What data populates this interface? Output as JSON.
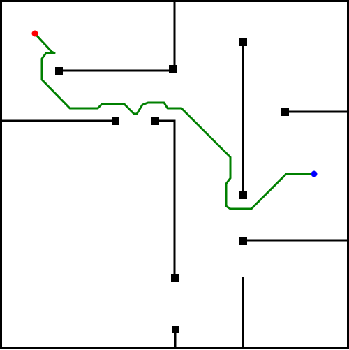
{
  "scene": {
    "kind": "maze-path-plan",
    "background_color": "#ffffff",
    "wall_color": "#000000",
    "path_color": "#008000",
    "start_marker_color": "#ff0000",
    "goal_marker_color": "#0000ff",
    "wall_count": 12,
    "pillar_count": 12
  }
}
